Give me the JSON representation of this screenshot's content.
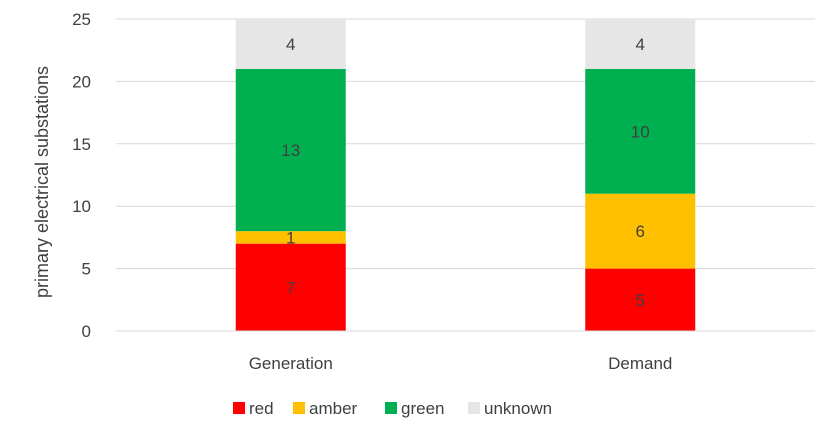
{
  "chart_data": {
    "type": "bar",
    "stacked": true,
    "categories": [
      "Generation",
      "Demand"
    ],
    "series": [
      {
        "name": "red",
        "color": "#ff0000",
        "values": [
          7,
          5
        ]
      },
      {
        "name": "amber",
        "color": "#ffc000",
        "values": [
          1,
          6
        ]
      },
      {
        "name": "green",
        "color": "#00b050",
        "values": [
          13,
          10
        ]
      },
      {
        "name": "unknown",
        "color": "#e7e6e6",
        "values": [
          4,
          4
        ]
      }
    ],
    "ylabel": "primary electrical substations",
    "xlabel": "",
    "ylim": [
      0,
      25
    ],
    "yticks": [
      0,
      5,
      10,
      15,
      20,
      25
    ],
    "grid": true,
    "legend": "bottom"
  }
}
